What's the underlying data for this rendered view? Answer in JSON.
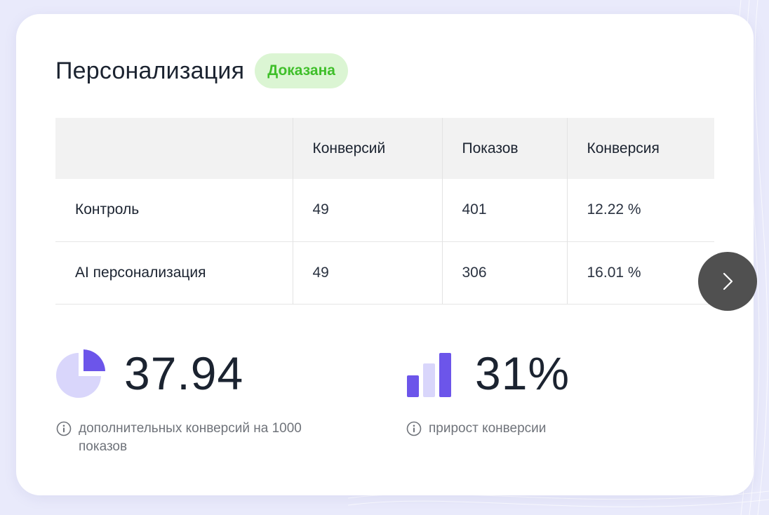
{
  "card": {
    "title": "Персонализация",
    "status_badge": "Доказана"
  },
  "table": {
    "columns": [
      "",
      "Конверсий",
      "Показов",
      "Конверсия"
    ],
    "rows": [
      {
        "label": "Контроль",
        "conversions": "49",
        "impressions": "401",
        "conversion_rate": "12.22 %"
      },
      {
        "label": "AI персонализация",
        "conversions": "49",
        "impressions": "306",
        "conversion_rate": "16.01 %"
      }
    ]
  },
  "metrics": {
    "extra_conversions": {
      "value": "37.94",
      "caption": "дополнительных конверсий на 1000 показов",
      "icon": "pie-chart-icon"
    },
    "conversion_growth": {
      "value": "31%",
      "caption": "прирост конверсии",
      "icon": "bar-chart-icon"
    }
  },
  "colors": {
    "accent": "#6c55ea",
    "accent_light": "#d9d6fb",
    "badge_bg": "#dbf5d3",
    "badge_text": "#3fbf2a",
    "next_button": "#505050"
  },
  "navigation": {
    "next_icon": "chevron-right-icon"
  }
}
